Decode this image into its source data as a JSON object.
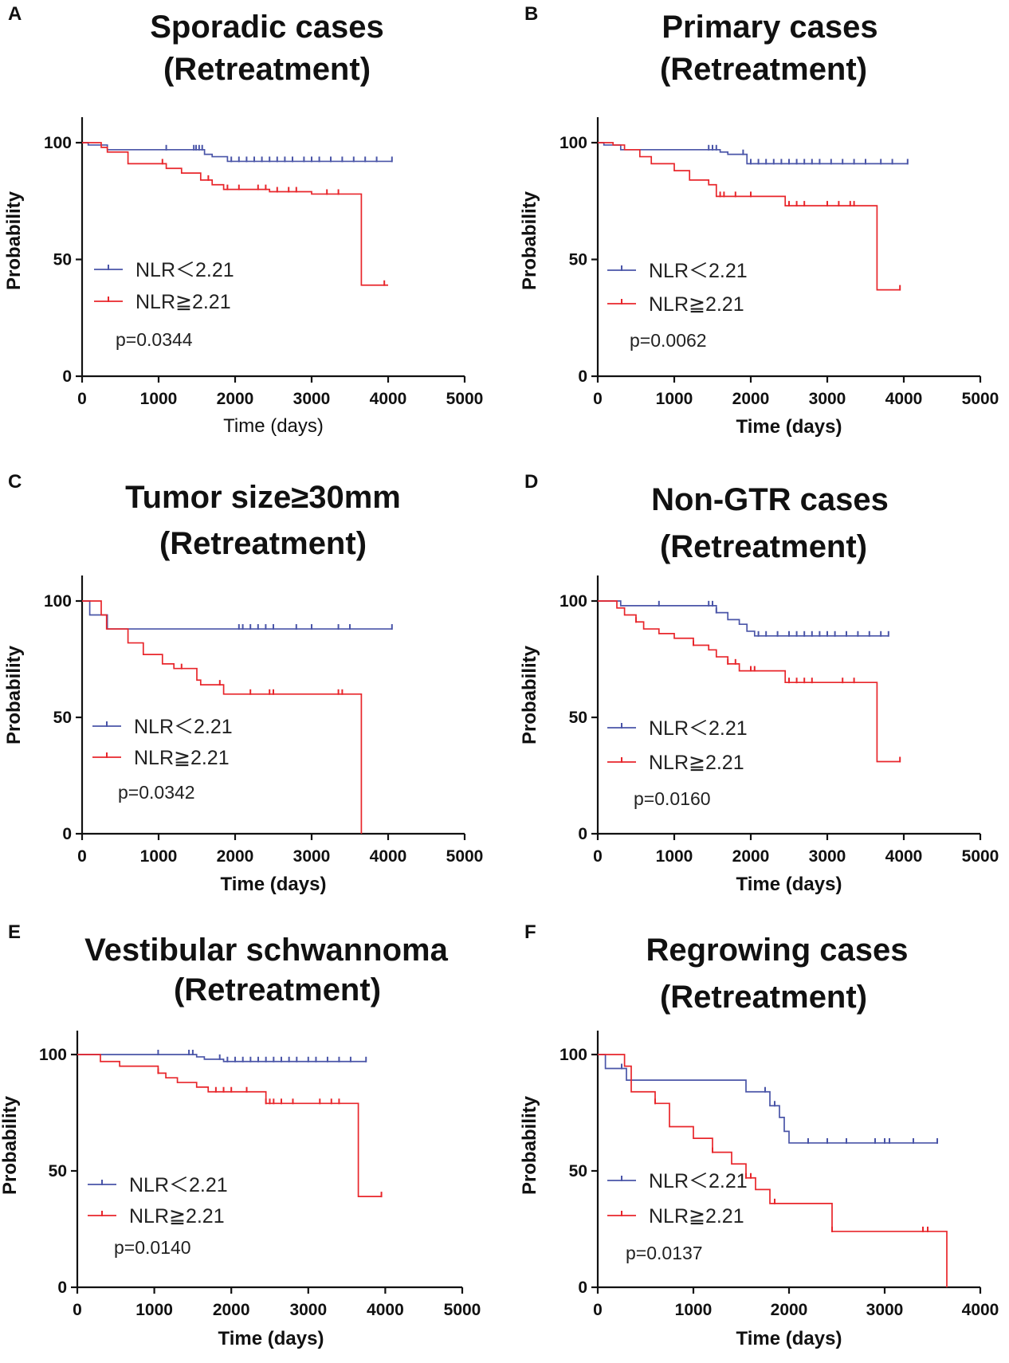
{
  "figure": {
    "legend": {
      "low": "NLR＜2.21",
      "high": "NLR≧2.21"
    },
    "colors": {
      "low": "#4a55a8",
      "high": "#e8262b",
      "axis": "#111111"
    }
  },
  "chart_data": [
    {
      "type": "line",
      "panel": "A",
      "title_line1": "Sporadic cases",
      "title_line2": "(Retreatment)",
      "xlabel": "Time (days)",
      "ylabel": "Probability",
      "xlim": [
        0,
        5000
      ],
      "ylim": [
        0,
        110
      ],
      "xticks": [
        0,
        1000,
        2000,
        3000,
        4000,
        5000
      ],
      "yticks": [
        0,
        50,
        100
      ],
      "p_value": "p=0.0344",
      "series": [
        {
          "name": "NLR＜2.21",
          "x": [
            0,
            80,
            330,
            1600,
            1700,
            1900,
            4050
          ],
          "y": [
            100,
            99,
            97,
            95,
            94,
            92,
            92
          ],
          "censor_x": [
            1100,
            1460,
            1490,
            1530,
            1570,
            1950,
            2050,
            2150,
            2250,
            2350,
            2450,
            2550,
            2650,
            2750,
            2900,
            3000,
            3100,
            3250,
            3400,
            3550,
            3700,
            3850,
            4050
          ]
        },
        {
          "name": "NLR≧2.21",
          "x": [
            0,
            250,
            330,
            600,
            1100,
            1300,
            1550,
            1700,
            1850,
            2450,
            3000,
            3650,
            4000
          ],
          "y": [
            100,
            98,
            96,
            91,
            89,
            87,
            84,
            82,
            80,
            79,
            78,
            39,
            39
          ],
          "censor_x": [
            1050,
            1650,
            1900,
            2050,
            2300,
            2400,
            2550,
            2700,
            2800,
            3200,
            3350,
            3950
          ]
        }
      ]
    },
    {
      "type": "line",
      "panel": "B",
      "title_line1": "Primary cases",
      "title_line2": "(Retreatment)",
      "xlabel": "Time (days)",
      "ylabel": "Probability",
      "xlim": [
        0,
        5000
      ],
      "ylim": [
        0,
        110
      ],
      "xticks": [
        0,
        1000,
        2000,
        3000,
        4000,
        5000
      ],
      "yticks": [
        0,
        50,
        100
      ],
      "p_value": "p=0.0062",
      "series": [
        {
          "name": "NLR＜2.21",
          "x": [
            0,
            80,
            300,
            1600,
            1700,
            1950,
            4050
          ],
          "y": [
            100,
            99,
            97,
            96,
            95,
            91,
            91
          ],
          "censor_x": [
            1450,
            1500,
            1550,
            1900,
            2000,
            2100,
            2200,
            2300,
            2400,
            2500,
            2600,
            2700,
            2800,
            2900,
            3050,
            3200,
            3350,
            3500,
            3700,
            3850,
            4050
          ]
        },
        {
          "name": "NLR≧2.21",
          "x": [
            0,
            200,
            350,
            550,
            700,
            1000,
            1200,
            1450,
            1550,
            1950,
            2450,
            3650,
            3950
          ],
          "y": [
            100,
            99,
            97,
            94,
            91,
            88,
            84,
            82,
            77,
            77,
            73,
            37,
            37
          ],
          "censor_x": [
            1600,
            1650,
            1800,
            2000,
            2500,
            2600,
            2700,
            3000,
            3150,
            3300,
            3350,
            3950
          ]
        }
      ]
    },
    {
      "type": "line",
      "panel": "C",
      "title_line1": "Tumor size≥30mm",
      "title_line2": "(Retreatment)",
      "xlabel": "Time (days)",
      "ylabel": "Probability",
      "xlim": [
        0,
        5000
      ],
      "ylim": [
        0,
        110
      ],
      "xticks": [
        0,
        1000,
        2000,
        3000,
        4000,
        5000
      ],
      "yticks": [
        0,
        50,
        100
      ],
      "p_value": "p=0.0342",
      "series": [
        {
          "name": "NLR＜2.21",
          "x": [
            0,
            100,
            330,
            4050
          ],
          "y": [
            100,
            94,
            88,
            88
          ],
          "censor_x": [
            2050,
            2100,
            2200,
            2300,
            2400,
            2500,
            2800,
            3000,
            3350,
            3500,
            4050
          ]
        },
        {
          "name": "NLR≧2.21",
          "x": [
            0,
            250,
            320,
            600,
            800,
            1050,
            1200,
            1500,
            1550,
            1850,
            3650
          ],
          "y": [
            100,
            94,
            88,
            82,
            77,
            73,
            71,
            66,
            64,
            60,
            0
          ],
          "censor_x": [
            1300,
            1800,
            2200,
            2450,
            2500,
            3350,
            3400
          ]
        }
      ]
    },
    {
      "type": "line",
      "panel": "D",
      "title_line1": "Non-GTR cases",
      "title_line2": "(Retreatment)",
      "xlabel": "Time (days)",
      "ylabel": "Probability",
      "xlim": [
        0,
        5000
      ],
      "ylim": [
        0,
        110
      ],
      "xticks": [
        0,
        1000,
        2000,
        3000,
        4000,
        5000
      ],
      "yticks": [
        0,
        50,
        100
      ],
      "p_value": "p=0.0160",
      "series": [
        {
          "name": "NLR＜2.21",
          "x": [
            0,
            300,
            1550,
            1700,
            1850,
            1950,
            2050,
            3800
          ],
          "y": [
            100,
            98,
            95,
            92,
            90,
            87,
            85,
            85
          ],
          "censor_x": [
            800,
            1450,
            1500,
            1550,
            2100,
            2200,
            2350,
            2500,
            2600,
            2700,
            2800,
            2900,
            3000,
            3100,
            3250,
            3400,
            3550,
            3700,
            3800
          ]
        },
        {
          "name": "NLR≧2.21",
          "x": [
            0,
            250,
            350,
            500,
            600,
            800,
            1000,
            1250,
            1450,
            1550,
            1700,
            1850,
            2450,
            3650,
            3950
          ],
          "y": [
            100,
            97,
            94,
            91,
            88,
            86,
            84,
            81,
            79,
            76,
            73,
            70,
            65,
            31,
            31
          ],
          "censor_x": [
            500,
            1250,
            1700,
            1800,
            2000,
            2050,
            2500,
            2600,
            2700,
            2800,
            3200,
            3350,
            3950
          ]
        }
      ]
    },
    {
      "type": "line",
      "panel": "E",
      "title_line1": "Vestibular schwannoma",
      "title_line2": "(Retreatment)",
      "xlabel": "Time (days)",
      "ylabel": "Probability",
      "xlim": [
        0,
        5000
      ],
      "ylim": [
        0,
        110
      ],
      "xticks": [
        0,
        1000,
        2000,
        3000,
        4000,
        5000
      ],
      "yticks": [
        0,
        50,
        100
      ],
      "p_value": "p=0.0140",
      "series": [
        {
          "name": "NLR＜2.21",
          "x": [
            0,
            1550,
            1650,
            1900,
            3750
          ],
          "y": [
            100,
            99,
            98,
            97,
            97
          ],
          "censor_x": [
            1050,
            1450,
            1500,
            1850,
            1950,
            2050,
            2150,
            2250,
            2350,
            2450,
            2550,
            2650,
            2750,
            2850,
            3000,
            3100,
            3250,
            3400,
            3550,
            3750
          ]
        },
        {
          "name": "NLR≧2.21",
          "x": [
            0,
            300,
            550,
            1050,
            1150,
            1300,
            1550,
            1700,
            2450,
            3650,
            3950
          ],
          "y": [
            100,
            97,
            95,
            92,
            90,
            88,
            86,
            84,
            79,
            39,
            39
          ],
          "censor_x": [
            1050,
            1800,
            1900,
            2000,
            2200,
            2450,
            2500,
            2550,
            2650,
            2800,
            3150,
            3300,
            3400,
            3950
          ]
        }
      ]
    },
    {
      "type": "line",
      "panel": "F",
      "title_line1": "Regrowing cases",
      "title_line2": "(Retreatment)",
      "xlabel": "Time (days)",
      "ylabel": "Probability",
      "xlim": [
        0,
        4000
      ],
      "ylim": [
        0,
        110
      ],
      "xticks": [
        0,
        1000,
        2000,
        3000,
        4000
      ],
      "yticks": [
        0,
        50,
        100
      ],
      "p_value": "p=0.0137",
      "series": [
        {
          "name": "NLR＜2.21",
          "x": [
            0,
            80,
            300,
            1550,
            1800,
            1900,
            1950,
            2000,
            3550
          ],
          "y": [
            100,
            94,
            89,
            84,
            78,
            73,
            67,
            62,
            62
          ],
          "censor_x": [
            250,
            1750,
            1850,
            2200,
            2400,
            2600,
            2900,
            3000,
            3050,
            3300,
            3550
          ]
        },
        {
          "name": "NLR≧2.21",
          "x": [
            0,
            280,
            350,
            600,
            750,
            1000,
            1200,
            1400,
            1550,
            1650,
            1800,
            2450,
            3650
          ],
          "y": [
            100,
            95,
            84,
            79,
            69,
            64,
            58,
            53,
            47,
            42,
            36,
            24,
            0
          ],
          "censor_x": [
            600,
            1200,
            1550,
            1600,
            1850,
            2450,
            3400,
            3450
          ]
        }
      ]
    }
  ]
}
